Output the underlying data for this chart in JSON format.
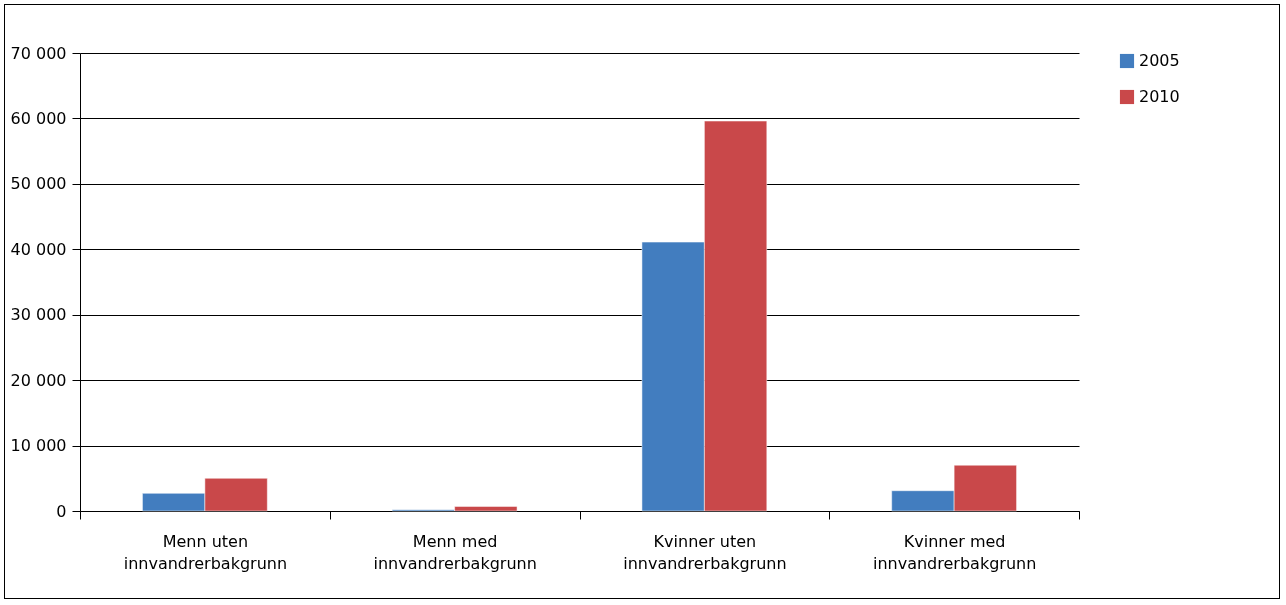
{
  "chart_data": {
    "type": "bar",
    "categories": [
      "Menn uten innvandrerbakgrunn",
      "Menn med innvandrerbakgrunn",
      "Kvinner uten innvandrerbakgrunn",
      "Kvinner med innvandrerbakgrunn"
    ],
    "series": [
      {
        "name": "2005",
        "color": "#427dbf",
        "values": [
          2700,
          200,
          41100,
          3100
        ]
      },
      {
        "name": "2010",
        "color": "#c9484a",
        "values": [
          5000,
          700,
          59600,
          7000
        ]
      }
    ],
    "ylim": [
      0,
      70000
    ],
    "yticks": [
      {
        "value": 0,
        "label": "0"
      },
      {
        "value": 10000,
        "label": "10 000"
      },
      {
        "value": 20000,
        "label": "20 000"
      },
      {
        "value": 30000,
        "label": "30 000"
      },
      {
        "value": 40000,
        "label": "40 000"
      },
      {
        "value": 50000,
        "label": "50 000"
      },
      {
        "value": 60000,
        "label": "60 000"
      },
      {
        "value": 70000,
        "label": "70 000"
      }
    ],
    "grid": "y",
    "legend": "right"
  }
}
